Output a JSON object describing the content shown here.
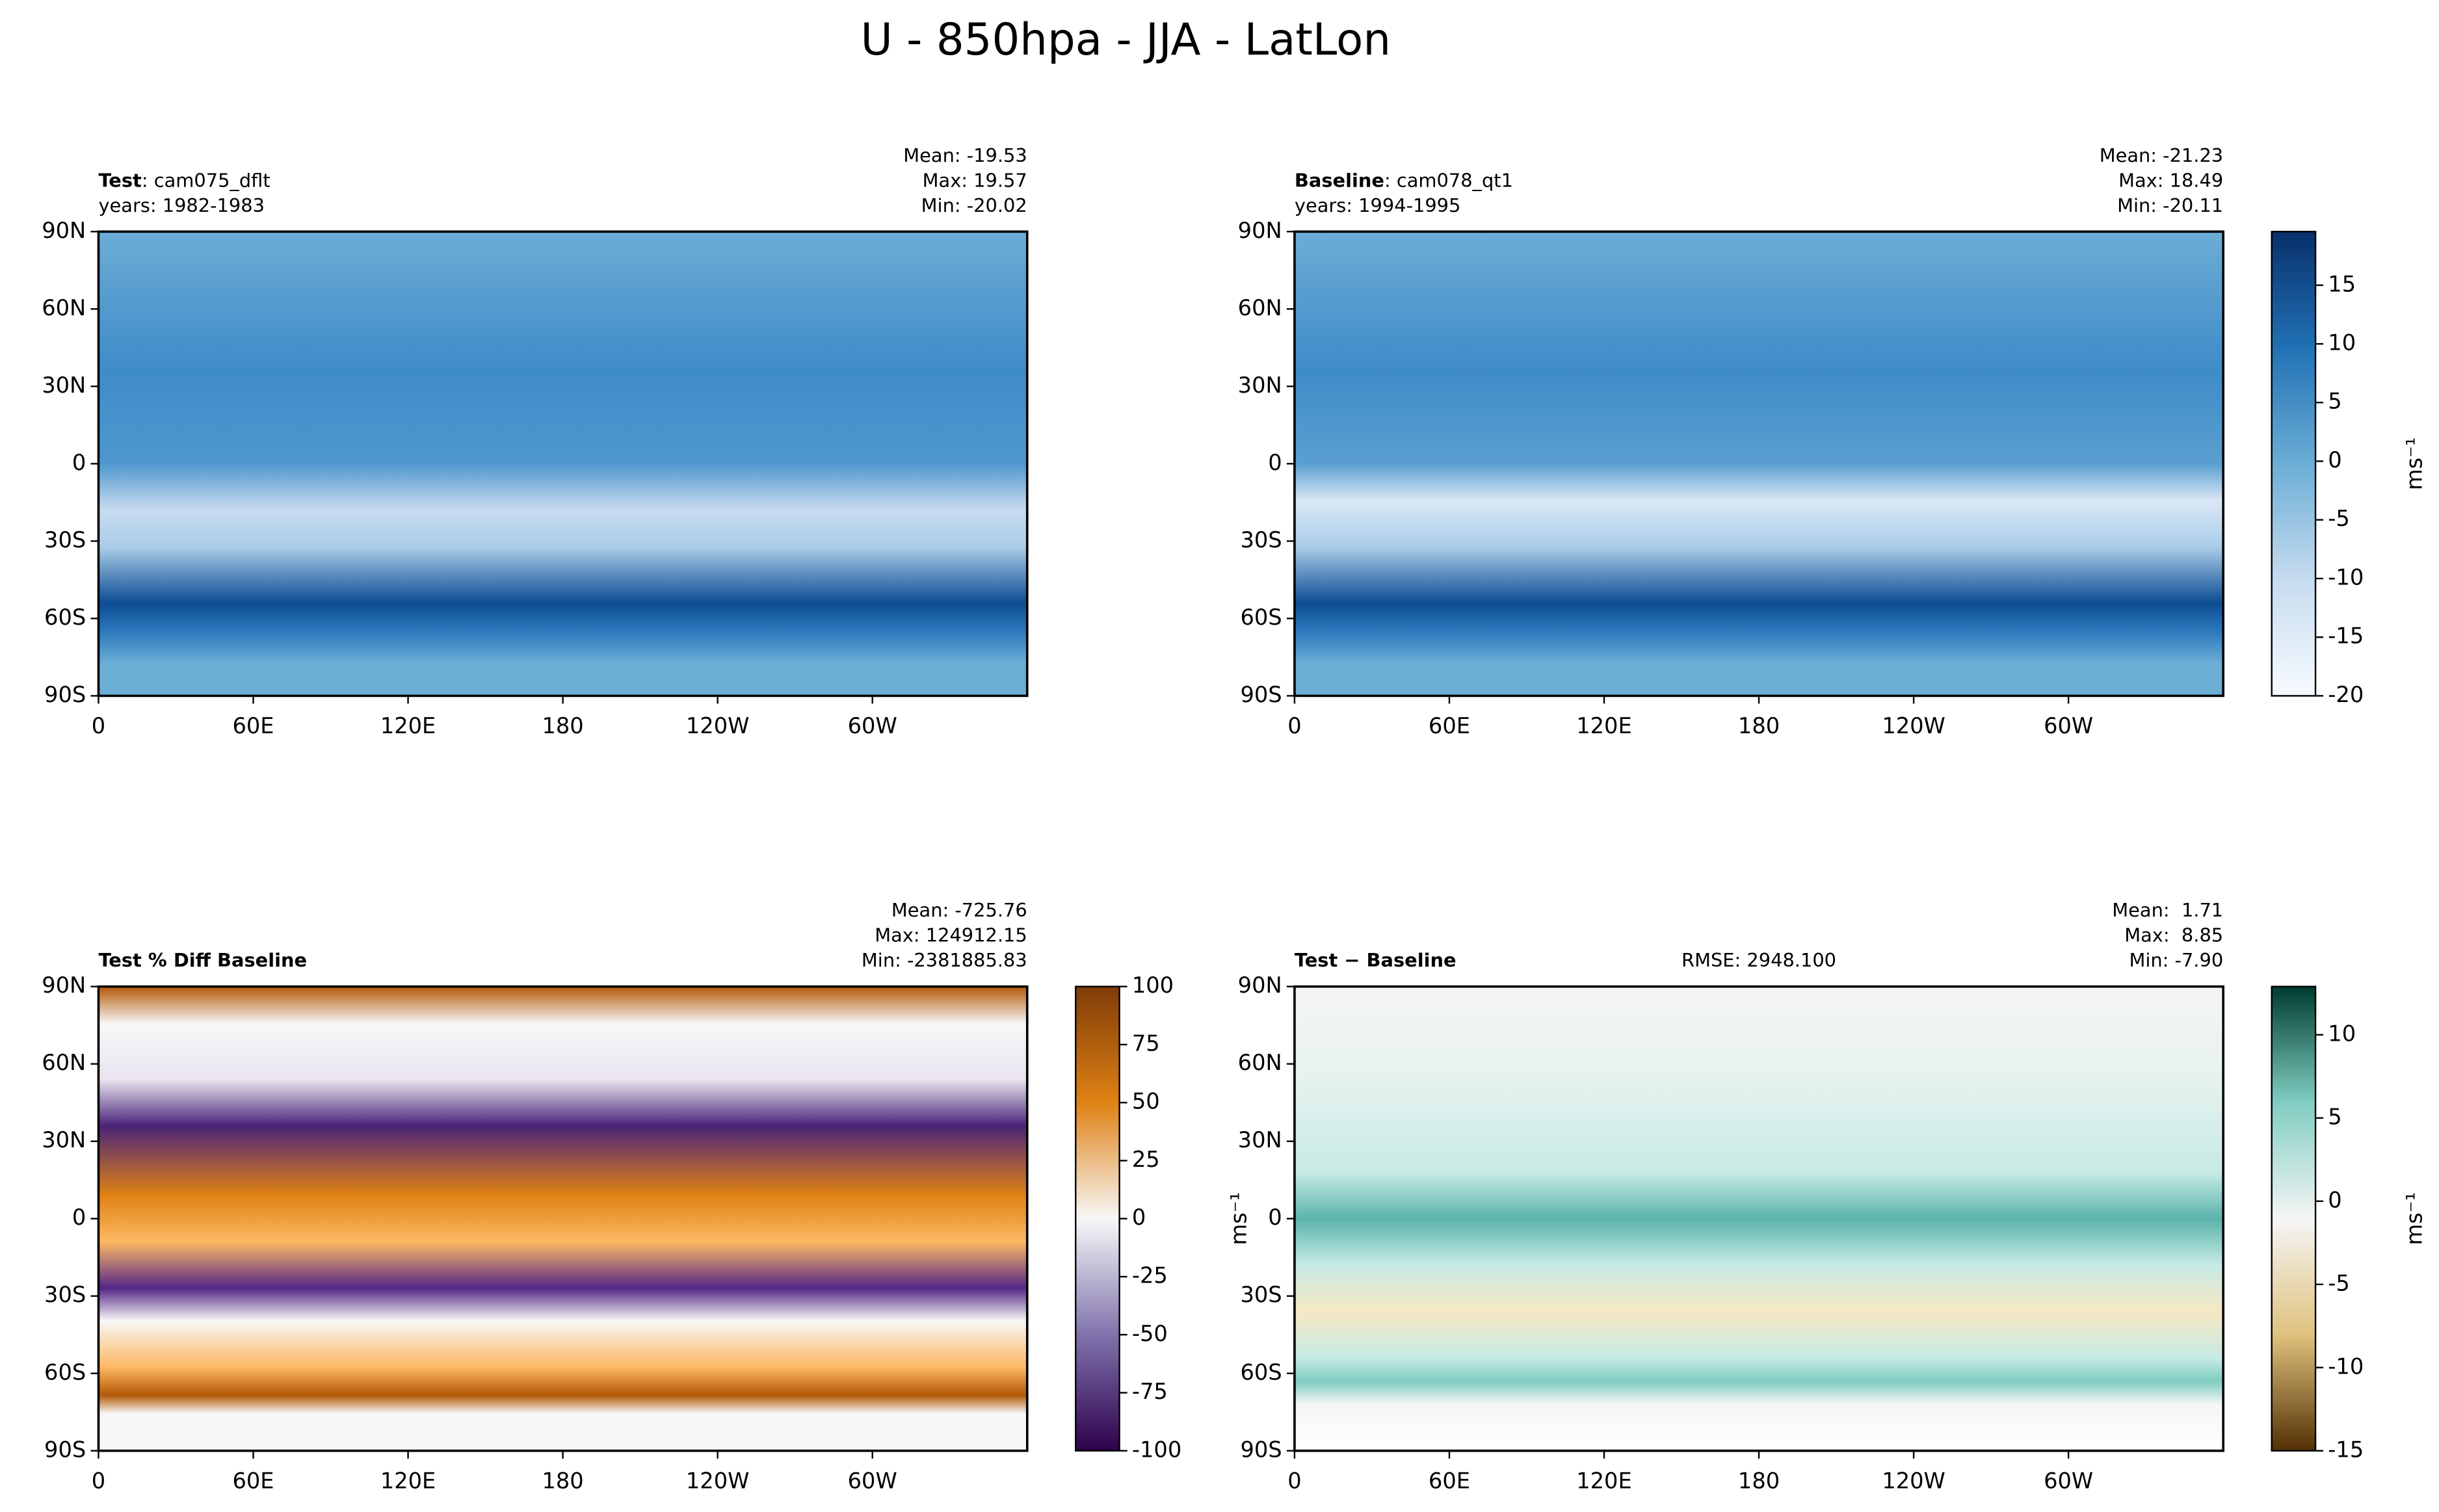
{
  "title": "U - 850hpa - JJA - LatLon",
  "chart_data": [
    {
      "type": "map",
      "label": "Test",
      "case": ": cam075_dflt",
      "years": "years: 1982-1983",
      "stats": [
        "Mean: -19.53",
        "Max: 19.57",
        "Min: -20.02"
      ],
      "xlim": [
        0,
        360
      ],
      "xticks": [
        0,
        {
          "value": 60,
          "label": "60E"
        },
        {
          "value": 120,
          "label": "120E"
        },
        180,
        {
          "value": 240,
          "label": "120W"
        },
        {
          "value": 300,
          "label": "60W"
        }
      ],
      "ylim": [
        -90,
        90
      ],
      "yticks": [
        {
          "value": -90,
          "label": "90S"
        },
        {
          "value": -60,
          "label": "60S"
        },
        {
          "value": -30,
          "label": "30S"
        },
        0,
        {
          "value": 30,
          "label": "30N"
        },
        {
          "value": 60,
          "label": "60N"
        },
        {
          "value": 90,
          "label": "90N"
        }
      ]
    },
    {
      "type": "map",
      "label": "Baseline",
      "case": ": cam078_qt1",
      "years": "years: 1994-1995",
      "stats": [
        "Mean: -21.23",
        "Max: 18.49",
        "Min: -20.11"
      ],
      "xlim": [
        0,
        360
      ],
      "xticks": [
        0,
        {
          "value": 60,
          "label": "60E"
        },
        {
          "value": 120,
          "label": "120E"
        },
        180,
        {
          "value": 240,
          "label": "120W"
        },
        {
          "value": 300,
          "label": "60W"
        }
      ],
      "ylim": [
        -90,
        90
      ],
      "yticks": [
        {
          "value": -90,
          "label": "90S"
        },
        {
          "value": -60,
          "label": "60S"
        },
        {
          "value": -30,
          "label": "30S"
        },
        0,
        {
          "value": 30,
          "label": "30N"
        },
        {
          "value": 60,
          "label": "60N"
        },
        {
          "value": 90,
          "label": "90N"
        }
      ],
      "colorbar": {
        "lim": [
          -20,
          19.57
        ],
        "ticks": [
          -20,
          -15,
          -10,
          -5,
          0,
          5,
          10,
          15
        ],
        "label": "ms⁻¹",
        "colormap": [
          "#f7fbff",
          "#c6dbef",
          "#6baed6",
          "#2171b5",
          "#08306b"
        ]
      }
    },
    {
      "type": "map",
      "label": "Test % Diff Baseline",
      "stats": [
        "Mean: -725.76",
        "Max: 124912.15",
        "Min: -2381885.83"
      ],
      "xlim": [
        0,
        360
      ],
      "xticks": [
        0,
        {
          "value": 60,
          "label": "60E"
        },
        {
          "value": 120,
          "label": "120E"
        },
        180,
        {
          "value": 240,
          "label": "120W"
        },
        {
          "value": 300,
          "label": "60W"
        }
      ],
      "ylim": [
        -90,
        90
      ],
      "yticks": [
        {
          "value": -90,
          "label": "90S"
        },
        {
          "value": -60,
          "label": "60S"
        },
        {
          "value": -30,
          "label": "30S"
        },
        0,
        {
          "value": 30,
          "label": "30N"
        },
        {
          "value": 60,
          "label": "60N"
        },
        {
          "value": 90,
          "label": "90N"
        }
      ],
      "colorbar": {
        "lim": [
          -100,
          100
        ],
        "ticks": [
          -100,
          -75,
          -50,
          -25,
          0,
          25,
          50,
          75,
          100
        ],
        "label": "ms⁻¹",
        "colormap": [
          "#2d004b",
          "#8073ac",
          "#f7f7f7",
          "#e08214",
          "#7f3b08"
        ]
      }
    },
    {
      "type": "map",
      "label": "Test − Baseline",
      "rmse": "RMSE: 2948.100",
      "stats": [
        "Mean:  1.71",
        "Max:  8.85",
        "Min: -7.90"
      ],
      "xlim": [
        0,
        360
      ],
      "xticks": [
        0,
        {
          "value": 60,
          "label": "60E"
        },
        {
          "value": 120,
          "label": "120E"
        },
        180,
        {
          "value": 240,
          "label": "120W"
        },
        {
          "value": 300,
          "label": "60W"
        }
      ],
      "ylim": [
        -90,
        90
      ],
      "yticks": [
        {
          "value": -90,
          "label": "90S"
        },
        {
          "value": -60,
          "label": "60S"
        },
        {
          "value": -30,
          "label": "30S"
        },
        0,
        {
          "value": 30,
          "label": "30N"
        },
        {
          "value": 60,
          "label": "60N"
        },
        {
          "value": 90,
          "label": "90N"
        }
      ],
      "colorbar": {
        "lim": [
          -15,
          12.9
        ],
        "ticks": [
          -15,
          -10,
          -5,
          0,
          5,
          10
        ],
        "label": "ms⁻¹",
        "colormap": [
          "#543005",
          "#dfc27d",
          "#f5f5f5",
          "#80cdc1",
          "#003c30"
        ]
      }
    }
  ]
}
